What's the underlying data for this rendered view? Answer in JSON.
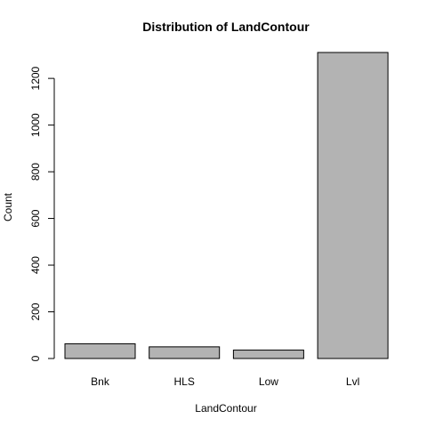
{
  "chart_data": {
    "type": "bar",
    "title": "Distribution of LandContour",
    "xlabel": "LandContour",
    "ylabel": "Count",
    "categories": [
      "Bnk",
      "HLS",
      "Low",
      "Lvl"
    ],
    "values": [
      63,
      50,
      36,
      1311
    ],
    "ylim": [
      0,
      1311
    ],
    "yticks": [
      0,
      200,
      400,
      600,
      800,
      1000,
      1200
    ],
    "bar_color": "#b3b3b3",
    "grid": false,
    "legend": "none"
  }
}
